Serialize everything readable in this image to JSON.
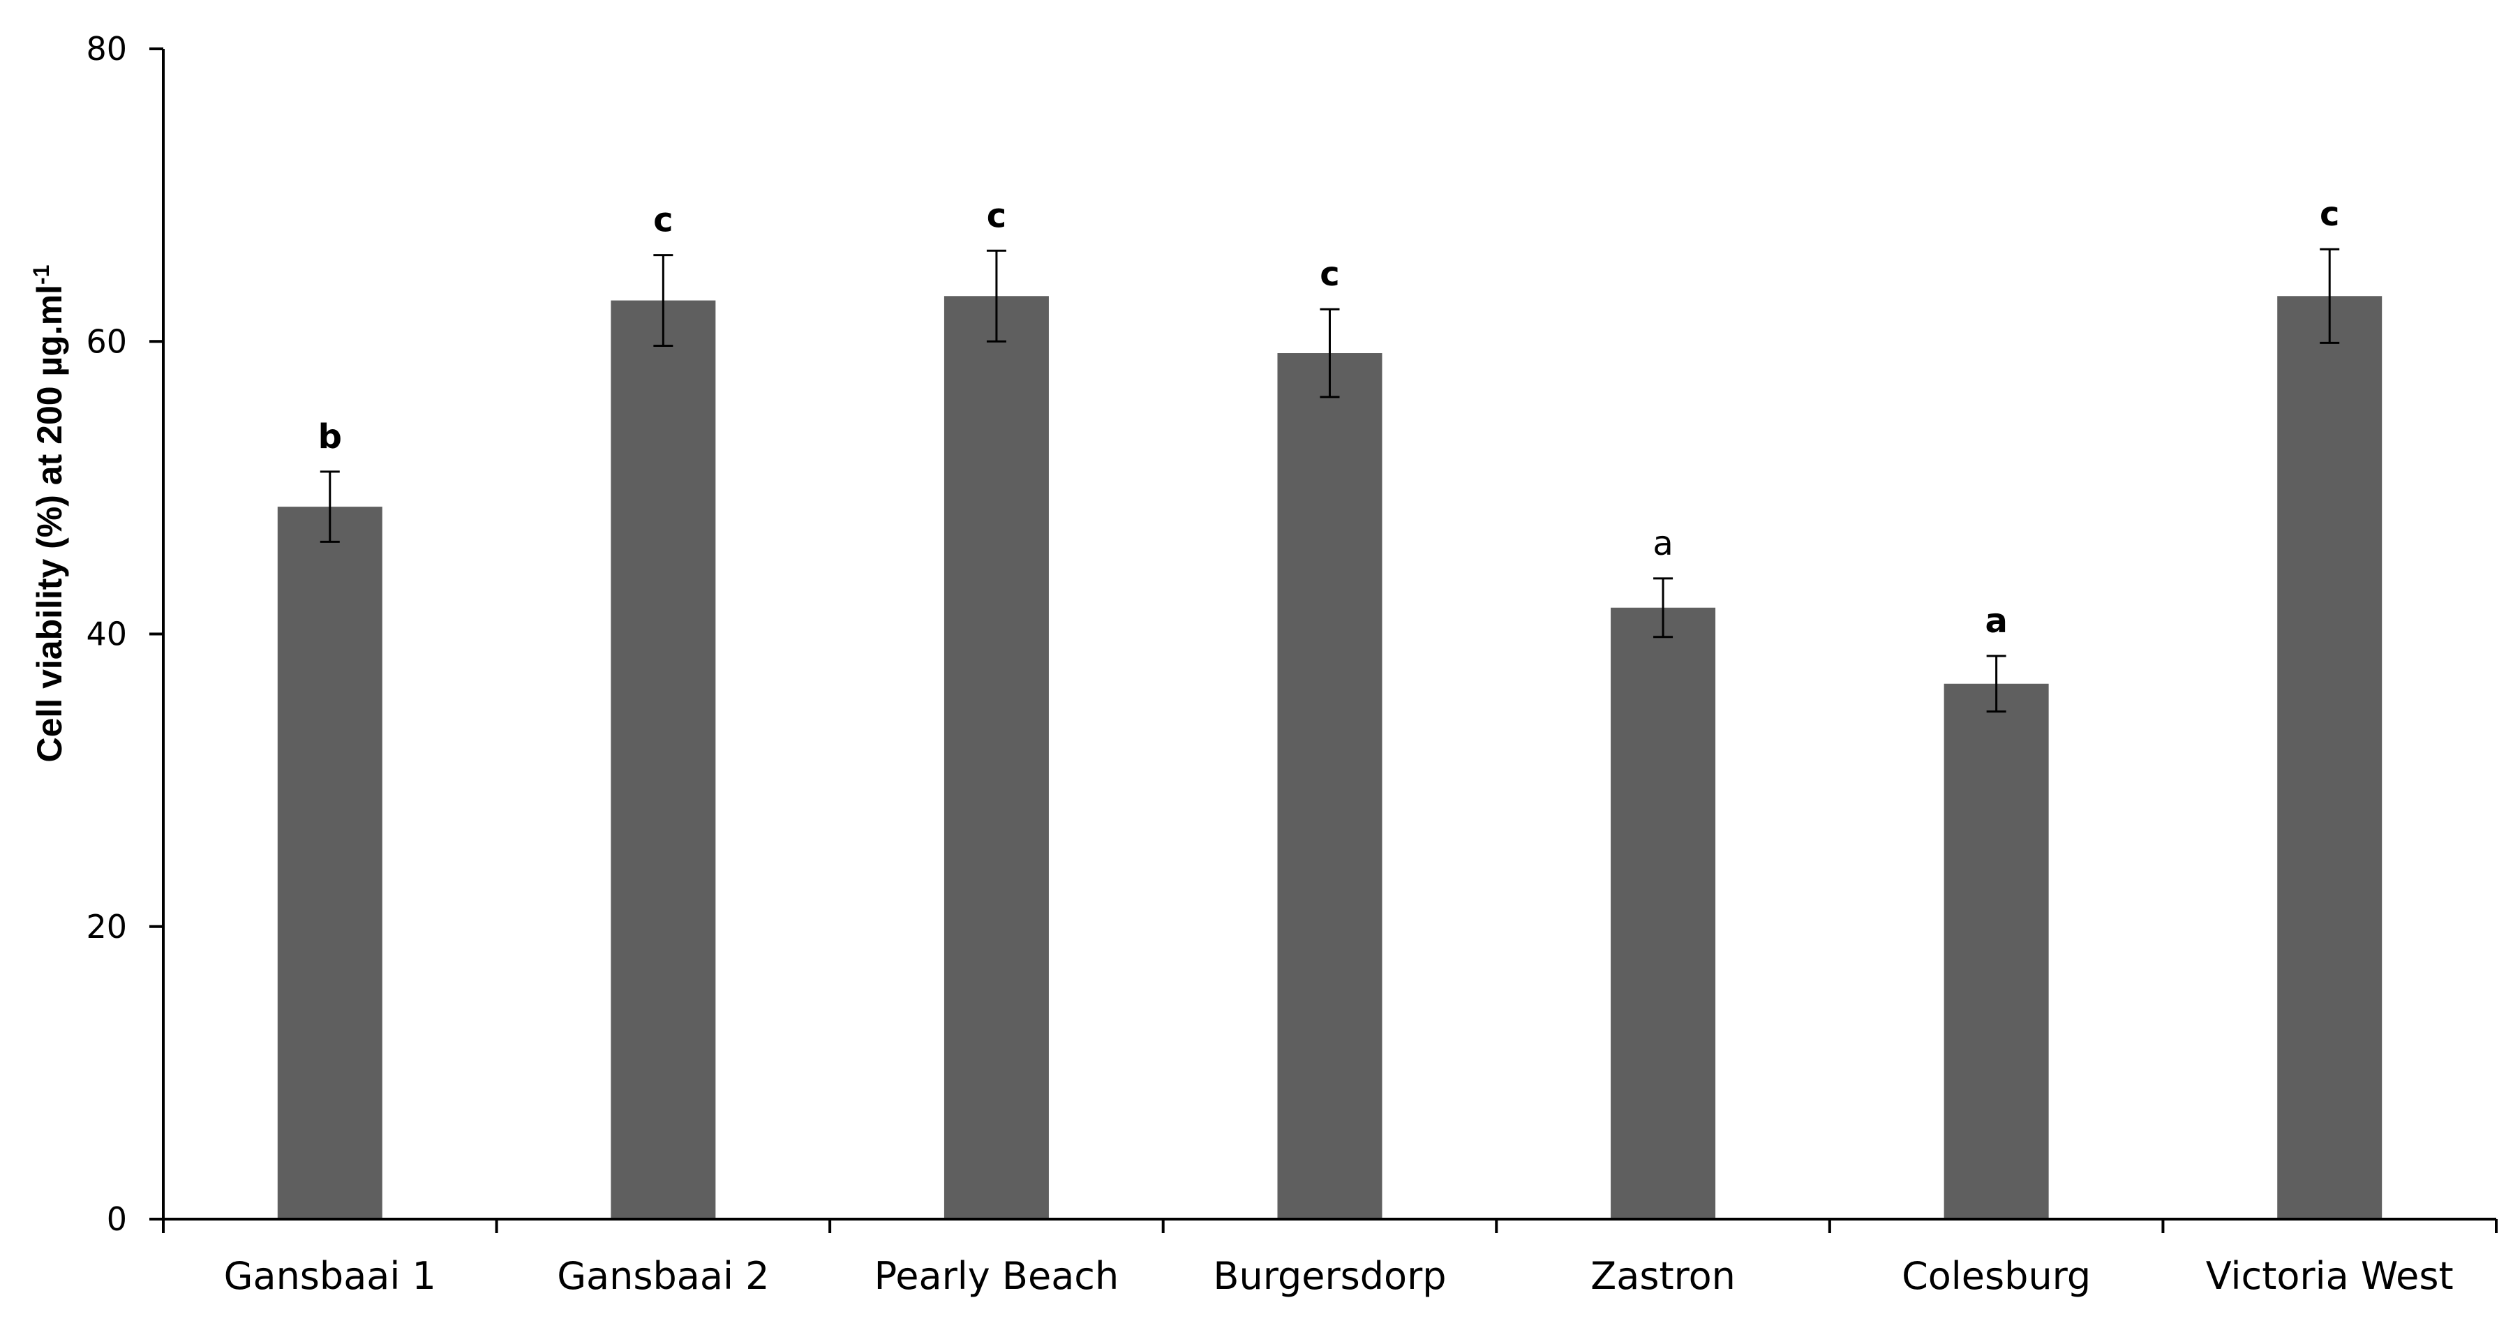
{
  "chart_data": {
    "type": "bar",
    "categories": [
      "Gansbaai 1",
      "Gansbaai 2",
      "Pearly Beach",
      "Burgersdorp",
      "Zastron",
      "Colesburg",
      "Victoria West"
    ],
    "series": [
      {
        "values": [
          48.7,
          62.8,
          63.1,
          59.2,
          41.8,
          36.6,
          63.1
        ],
        "errors": [
          2.4,
          3.1,
          3.1,
          3.0,
          2.0,
          1.9,
          3.2
        ],
        "color": "#5f5f5f"
      }
    ],
    "significance_labels": [
      {
        "text": "b",
        "bold": true
      },
      {
        "text": "c",
        "bold": true
      },
      {
        "text": "c",
        "bold": true
      },
      {
        "text": "c",
        "bold": true
      },
      {
        "text": "a",
        "bold": false
      },
      {
        "text": "a",
        "bold": true
      },
      {
        "text": "c",
        "bold": true
      }
    ],
    "ylabel": "Cell viability (%) at 200 µg.ml",
    "ylabel_superscript": "-1",
    "ylim": [
      0,
      80
    ],
    "yticks": [
      0,
      20,
      40,
      60,
      80
    ],
    "xlabel": "",
    "title": "",
    "grid": false,
    "legend": "none"
  }
}
